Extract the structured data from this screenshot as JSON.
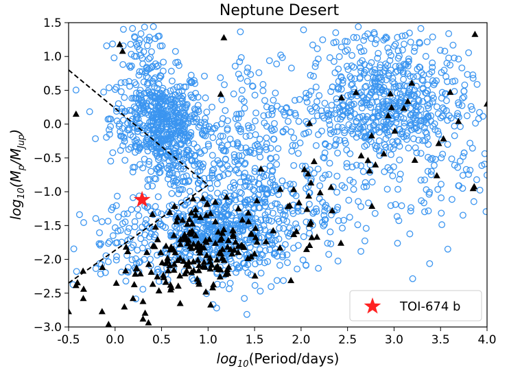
{
  "chart_data": {
    "type": "scatter",
    "title": "Neptune Desert",
    "xlabel_prefix": "log",
    "xlabel_sub": "10",
    "xlabel_rest": "(Period/days)",
    "ylabel_prefix": "log",
    "ylabel_sub": "10",
    "ylabel_rest": "(M",
    "ylabel_sub2": "p",
    "ylabel_mid": "/M",
    "ylabel_sub3": "Jup",
    "ylabel_end": ")",
    "xlim": [
      -0.5,
      4.0
    ],
    "ylim": [
      -3.0,
      1.5
    ],
    "xticks": [
      "-0.5",
      "0.0",
      "0.5",
      "1.0",
      "1.5",
      "2.0",
      "2.5",
      "3.0",
      "3.5",
      "4.0"
    ],
    "xtick_values": [
      -0.5,
      0.0,
      0.5,
      1.0,
      1.5,
      2.0,
      2.5,
      3.0,
      3.5,
      4.0
    ],
    "yticks": [
      "1.5",
      "1.0",
      "0.5",
      "0.0",
      "−0.5",
      "−1.0",
      "−1.5",
      "−2.0",
      "−2.5",
      "−3.0"
    ],
    "ytick_values": [
      1.5,
      1.0,
      0.5,
      0.0,
      -0.5,
      -1.0,
      -1.5,
      -2.0,
      -2.5,
      -3.0
    ],
    "grid": false,
    "legend_position": "bottom-right",
    "colors": {
      "circles": "#3b95f0",
      "triangles": "#000000",
      "star": "#ff2222",
      "lines": "#000000"
    },
    "boundary_lines": [
      {
        "x": [
          -0.5,
          1.0
        ],
        "y": [
          0.8,
          -0.9
        ]
      },
      {
        "x": [
          -0.5,
          1.0
        ],
        "y": [
          -2.35,
          -0.9
        ]
      }
    ],
    "highlight": {
      "name": "TOI-674 b",
      "x": 0.29,
      "y": -1.12
    },
    "series": [
      {
        "marker": "circle",
        "clusters": [
          {
            "cx": 0.45,
            "cy": 0.1,
            "sx": 0.25,
            "sy": 0.35,
            "n": 420
          },
          {
            "cx": 0.6,
            "cy": -0.3,
            "sx": 0.15,
            "sy": 0.3,
            "n": 150
          },
          {
            "cx": 1.05,
            "cy": -1.65,
            "sx": 0.35,
            "sy": 0.3,
            "n": 420
          },
          {
            "cx": 1.6,
            "cy": -1.4,
            "sx": 0.4,
            "sy": 0.45,
            "n": 220
          },
          {
            "cx": 2.9,
            "cy": 0.25,
            "sx": 0.45,
            "sy": 0.4,
            "n": 520
          },
          {
            "cx": 1.6,
            "cy": 0.0,
            "sx": 0.5,
            "sy": 0.55,
            "n": 160
          },
          {
            "cx": 1.0,
            "cy": -0.6,
            "sx": 0.35,
            "sy": 0.35,
            "n": 120
          },
          {
            "cx": 0.15,
            "cy": -1.8,
            "sx": 0.3,
            "sy": 0.35,
            "n": 90
          },
          {
            "cx": 3.3,
            "cy": -0.8,
            "sx": 0.5,
            "sy": 0.5,
            "n": 90
          },
          {
            "cx": 2.8,
            "cy": 1.05,
            "sx": 0.45,
            "sy": 0.25,
            "n": 80
          },
          {
            "cx": 0.25,
            "cy": 1.05,
            "sx": 0.15,
            "sy": 0.2,
            "n": 45
          },
          {
            "cx": 2.2,
            "cy": -1.0,
            "sx": 0.35,
            "sy": 0.45,
            "n": 60
          }
        ]
      },
      {
        "marker": "triangle",
        "clusters": [
          {
            "cx": 1.0,
            "cy": -1.75,
            "sx": 0.3,
            "sy": 0.3,
            "n": 130
          },
          {
            "cx": 0.55,
            "cy": -2.2,
            "sx": 0.3,
            "sy": 0.3,
            "n": 35
          },
          {
            "cx": 1.7,
            "cy": -1.4,
            "sx": 0.3,
            "sy": 0.3,
            "n": 25
          },
          {
            "cx": 2.9,
            "cy": 0.0,
            "sx": 0.6,
            "sy": 0.5,
            "n": 25
          },
          {
            "cx": 0.0,
            "cy": -2.4,
            "sx": 0.35,
            "sy": 0.35,
            "n": 12
          },
          {
            "cx": 2.1,
            "cy": -0.7,
            "sx": 0.4,
            "sy": 0.4,
            "n": 8
          }
        ],
        "fixed_points": [
          {
            "x": -0.42,
            "y": 0.15
          },
          {
            "x": 0.05,
            "y": 1.18
          },
          {
            "x": 0.08,
            "y": 1.08
          },
          {
            "x": 1.17,
            "y": 1.28
          },
          {
            "x": 3.87,
            "y": 1.33
          },
          {
            "x": 3.85,
            "y": -0.95
          },
          {
            "x": 4.0,
            "y": 0.3
          },
          {
            "x": -0.5,
            "y": -2.77
          },
          {
            "x": -0.14,
            "y": -2.77
          },
          {
            "x": -0.07,
            "y": -2.96
          },
          {
            "x": 0.3,
            "y": -2.88
          },
          {
            "x": 0.3,
            "y": -2.62
          },
          {
            "x": 0.7,
            "y": -2.65
          },
          {
            "x": 0.1,
            "y": -2.7
          },
          {
            "x": 3.46,
            "y": -0.76
          },
          {
            "x": 2.8,
            "y": -0.6
          }
        ]
      }
    ]
  }
}
